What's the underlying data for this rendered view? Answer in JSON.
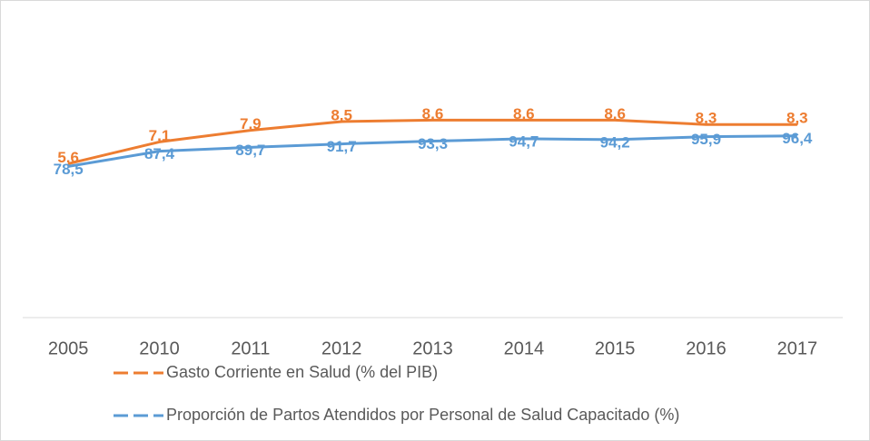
{
  "chart_data": {
    "type": "line",
    "categories": [
      "2005",
      "2010",
      "2011",
      "2012",
      "2013",
      "2014",
      "2015",
      "2016",
      "2017"
    ],
    "series": [
      {
        "name": "Gasto Corriente en Salud (% del PIB)",
        "color": "#ed7d31",
        "values": [
          5.6,
          7.1,
          7.9,
          8.5,
          8.6,
          8.6,
          8.6,
          8.3,
          8.3
        ],
        "value_labels": [
          "5,6",
          "7,1",
          "7,9",
          "8,5",
          "8,6",
          "8,6",
          "8,6",
          "8,3",
          "8,3"
        ]
      },
      {
        "name": "Proporción de Partos Atendidos por Personal de Salud Capacitado (%)",
        "color": "#5b9bd5",
        "axis": "y2",
        "values": [
          78.5,
          87.4,
          89.7,
          91.7,
          93.3,
          94.7,
          94.2,
          95.9,
          96.4
        ],
        "value_labels": [
          "78,5",
          "87,4",
          "89,7",
          "91,7",
          "93,3",
          "94,7",
          "94,2",
          "95,9",
          "96,4"
        ]
      }
    ],
    "ylim": [
      -5,
      15
    ],
    "y2lim": [
      -10,
      160
    ],
    "legend": "bottom"
  }
}
